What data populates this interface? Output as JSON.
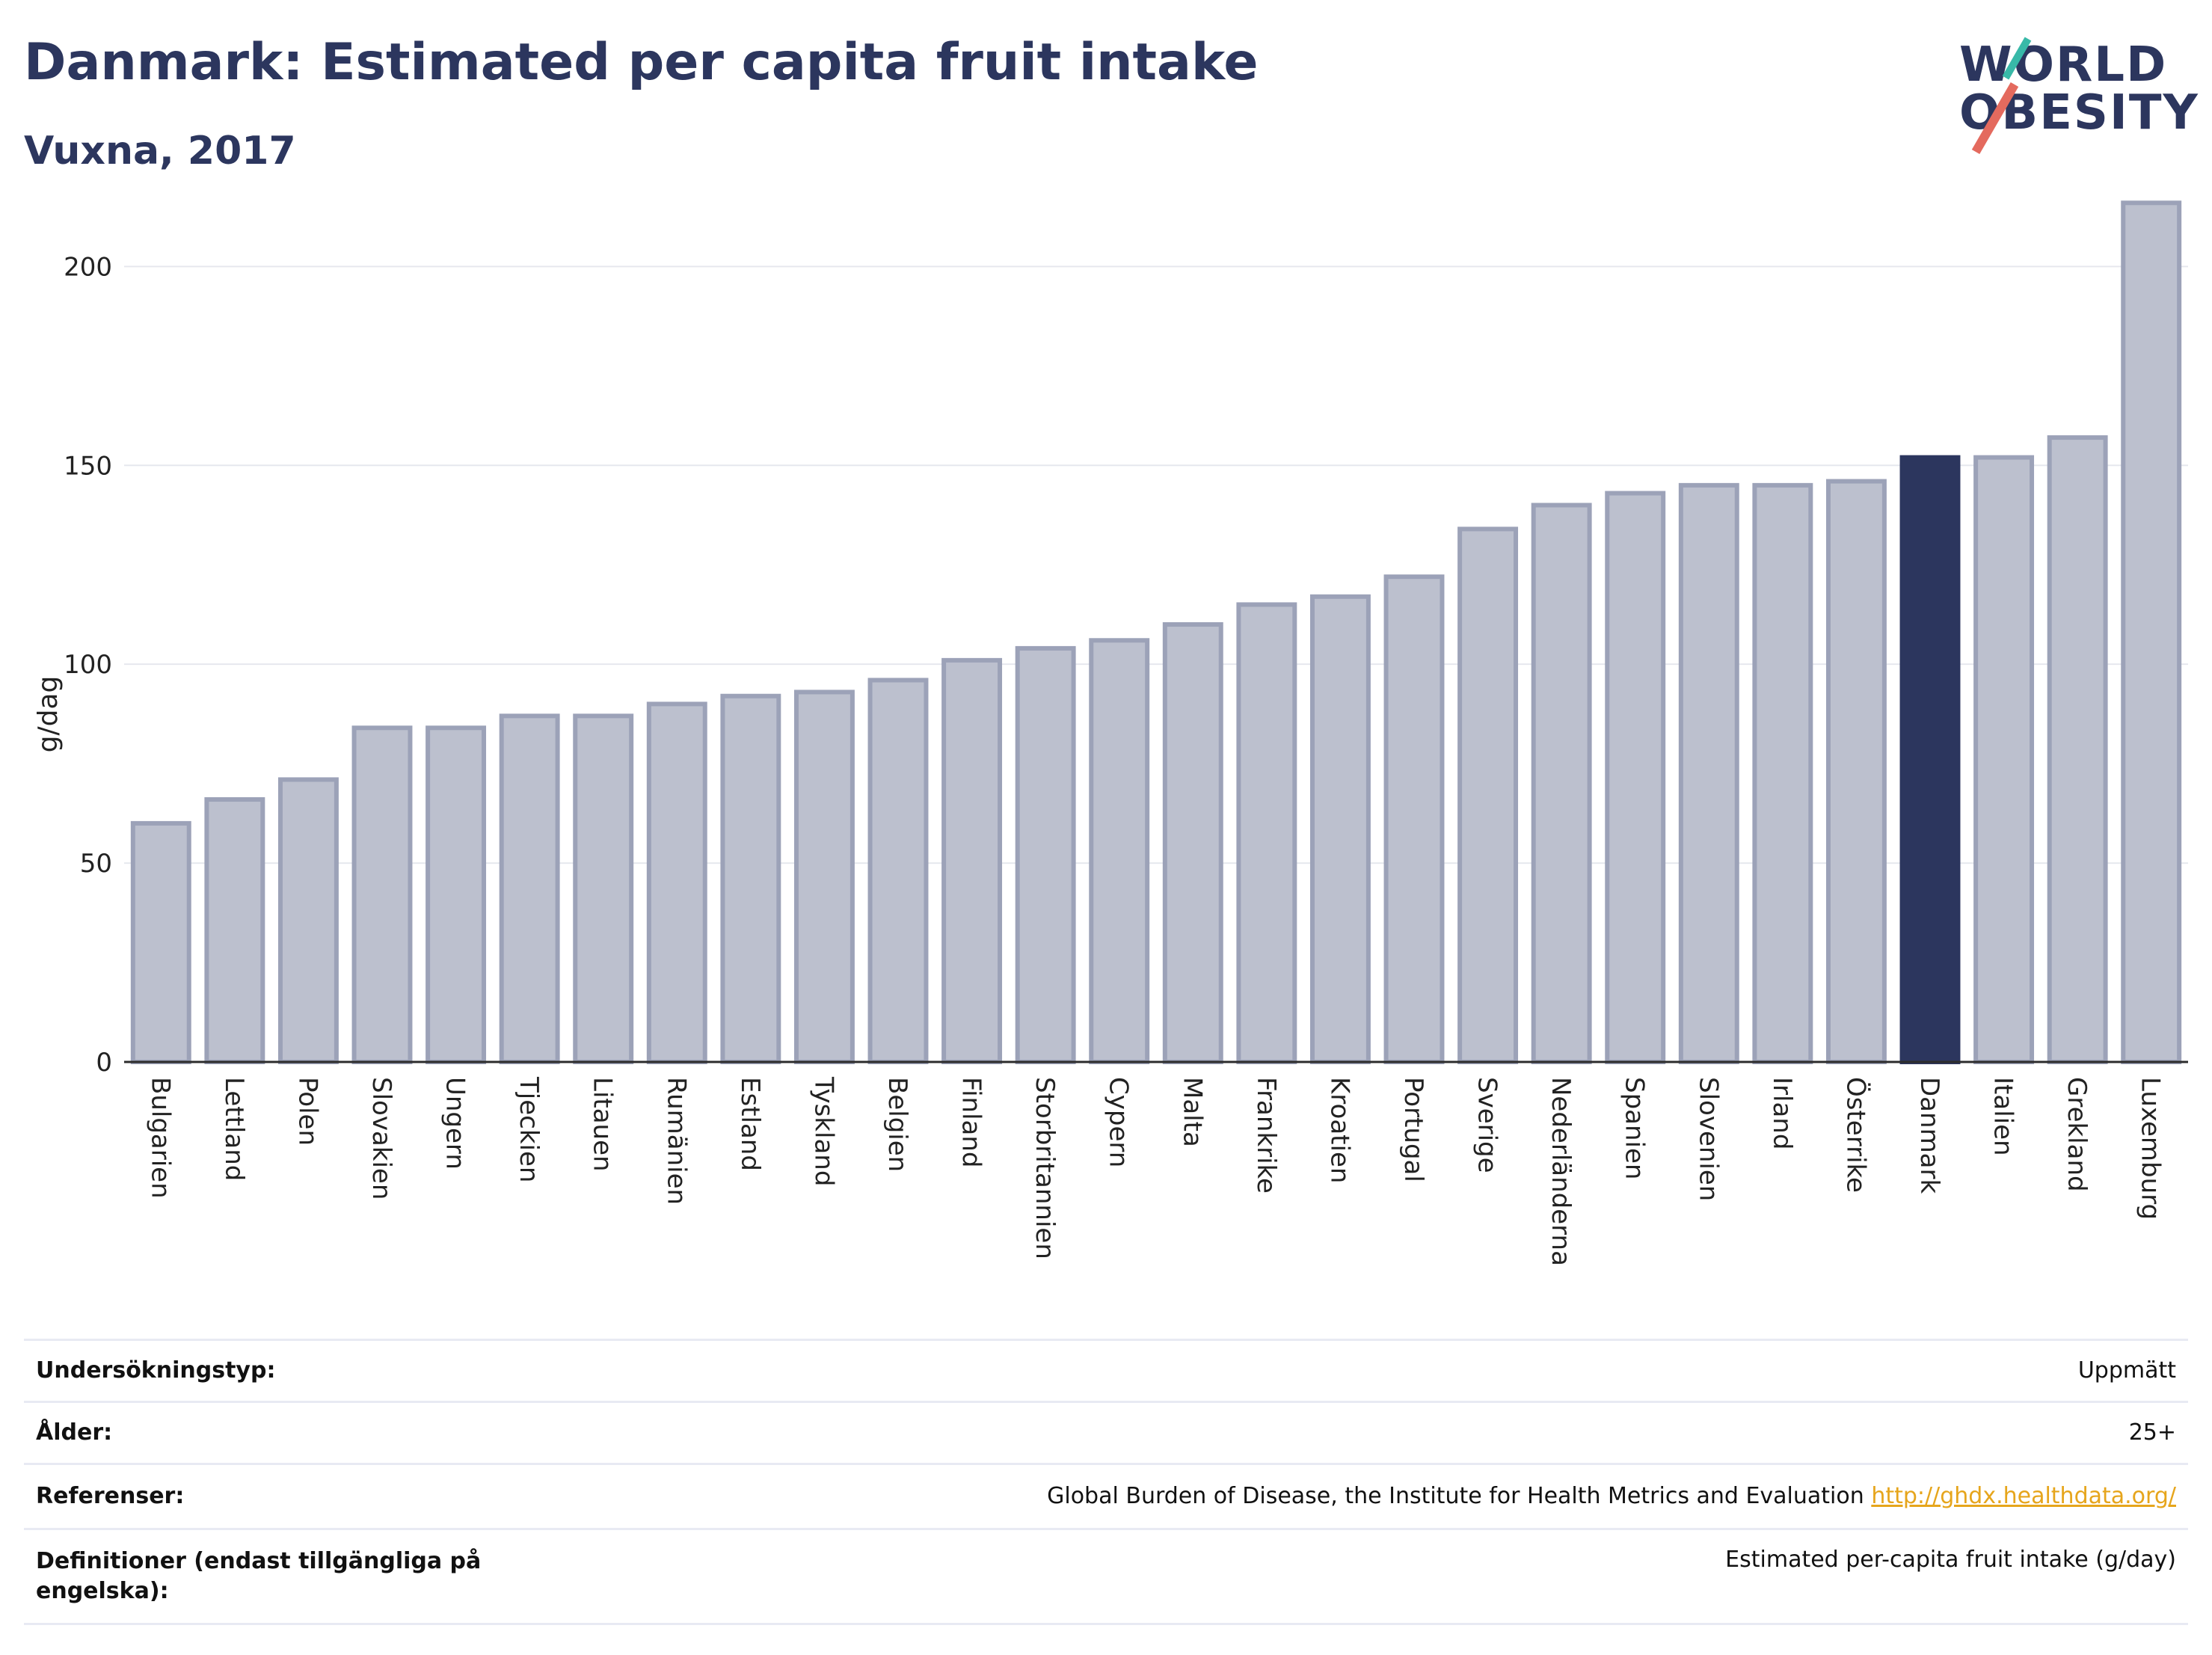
{
  "header": {
    "title": "Danmark: Estimated per capita fruit intake",
    "subtitle": "Vuxna, 2017"
  },
  "logo": {
    "line1": "WORLD",
    "line2": "OBESITY",
    "accent_colors": [
      "#38b9a8",
      "#e46a5e"
    ]
  },
  "chart_data": {
    "type": "bar",
    "title": "",
    "xlabel": "",
    "ylabel": "g/dag",
    "ylim": [
      0,
      220
    ],
    "yticks": [
      0,
      50,
      100,
      150,
      200
    ],
    "grid": true,
    "highlight": "Danmark",
    "colors": {
      "bar": "#bcc0ce",
      "bar_border": "#9ca2b8",
      "highlight": "#2c365e"
    },
    "categories": [
      "Bulgarien",
      "Lettland",
      "Polen",
      "Slovakien",
      "Ungern",
      "Tjeckien",
      "Litauen",
      "Rumänien",
      "Estland",
      "Tyskland",
      "Belgien",
      "Finland",
      "Storbritannien",
      "Cypern",
      "Malta",
      "Frankrike",
      "Kroatien",
      "Portugal",
      "Sverige",
      "Nederländerna",
      "Spanien",
      "Slovenien",
      "Irland",
      "Österrike",
      "Danmark",
      "Italien",
      "Grekland",
      "Luxemburg"
    ],
    "values": [
      60,
      66,
      71,
      84,
      84,
      87,
      87,
      90,
      92,
      93,
      96,
      101,
      104,
      106,
      110,
      115,
      117,
      122,
      134,
      140,
      143,
      145,
      145,
      146,
      152,
      152,
      157,
      216
    ]
  },
  "info_table": {
    "rows": [
      {
        "label": "Undersökningstyp:",
        "value": "Uppmätt"
      },
      {
        "label": "Ålder:",
        "value": "25+"
      },
      {
        "label": "Referenser:",
        "value": "Global Burden of Disease, the Institute for Health Metrics and Evaluation",
        "link": "http://ghdx.healthdata.org/"
      },
      {
        "label": "Definitioner (endast tillgängliga på engelska):",
        "value": "Estimated per-capita fruit intake (g/day)"
      }
    ]
  }
}
